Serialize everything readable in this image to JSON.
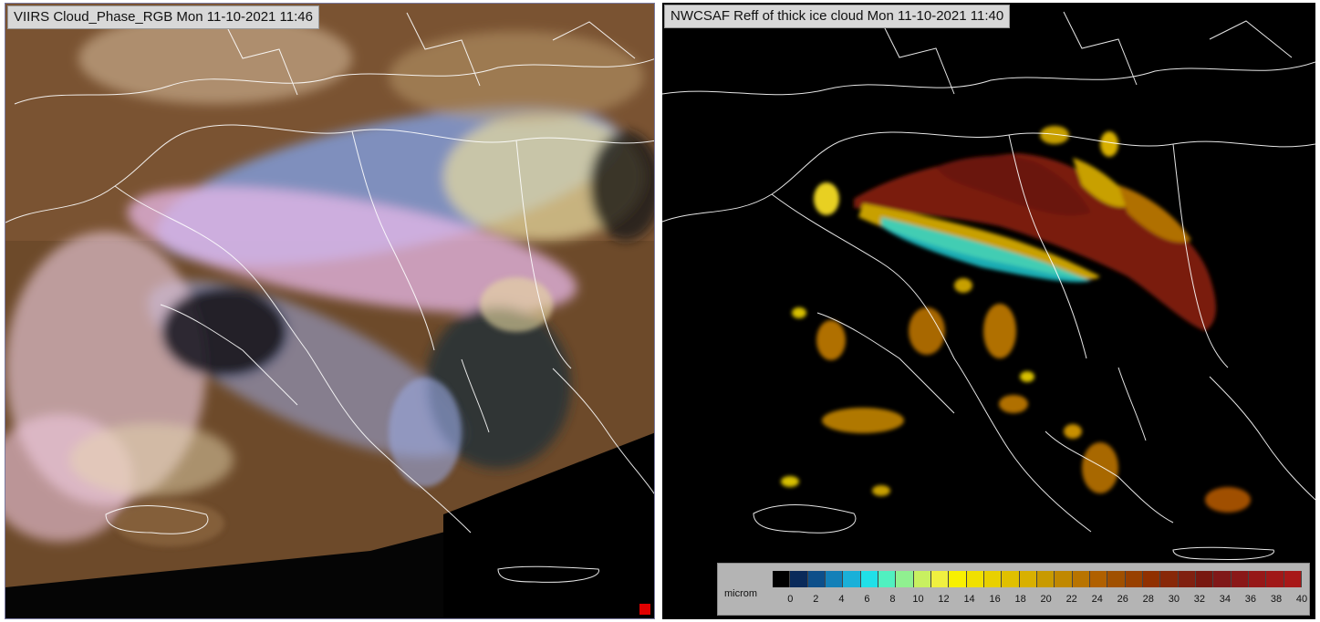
{
  "left_panel": {
    "title": "VIIRS Cloud_Phase_RGB Mon 11-10-2021 11:46"
  },
  "right_panel": {
    "title": "NWCSAF Reff of thick ice cloud Mon 11-10-2021 11:40",
    "colorbar": {
      "unit": "microm",
      "ticks": [
        "0",
        "2",
        "4",
        "6",
        "8",
        "10",
        "12",
        "14",
        "16",
        "18",
        "20",
        "22",
        "24",
        "26",
        "28",
        "30",
        "32",
        "34",
        "36",
        "38",
        "40"
      ],
      "colors": [
        "#000000",
        "#0a2a5a",
        "#0d4f8a",
        "#1380b8",
        "#1ab0d8",
        "#20e0e8",
        "#50f0c0",
        "#90f090",
        "#c8f060",
        "#f0f040",
        "#f8f000",
        "#f0e000",
        "#e8d000",
        "#e0c000",
        "#d8b000",
        "#c89a00",
        "#c08800",
        "#b87400",
        "#b06000",
        "#a05000",
        "#984000",
        "#903000",
        "#882808",
        "#802010",
        "#781810",
        "#801818",
        "#8a1818",
        "#961818",
        "#a01818",
        "#a81818"
      ]
    }
  },
  "colors": {
    "cloud_phase_background": "#6d4a2a",
    "reff_background": "#000000",
    "border_lines": "#ffffff"
  }
}
